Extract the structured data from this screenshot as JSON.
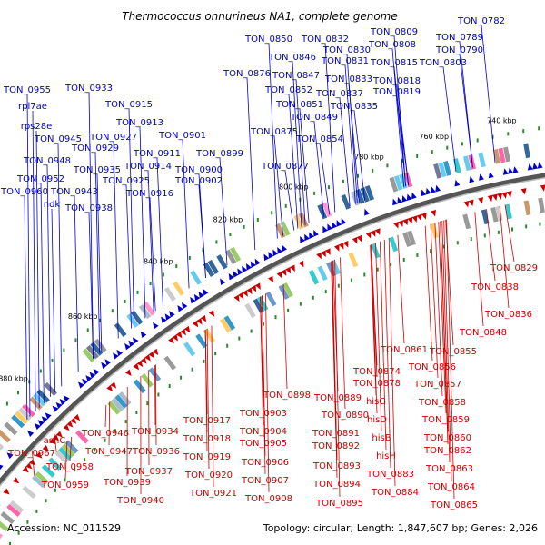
{
  "title": "Thermococcus onnurineus NA1, complete genome",
  "footer": {
    "accession": "Accession: NC_011529",
    "summary": "Topology: circular; Length: 1,847,607 bp; Genes: 2,026"
  },
  "colors": {
    "forward": "#0000cc",
    "reverse": "#cc0000",
    "backbone": "#555555",
    "tick": "#2a8a2a"
  },
  "ticks": [
    "740 kbp",
    "760 kbp",
    "780 kbp",
    "800 kbp",
    "820 kbp",
    "840 kbp",
    "860 kbp",
    "880 kbp"
  ],
  "top_labels": [
    "TON_0782",
    "TON_0809",
    "TON_0789",
    "TON_0808",
    "TON_0790",
    "TON_0850",
    "TON_0832",
    "TON_0830",
    "TON_0846",
    "TON_0831",
    "TON_0815",
    "TON_0803",
    "TON_0876",
    "TON_0847",
    "TON_0833",
    "TON_0818",
    "TON_0852",
    "TON_0837",
    "TON_0819",
    "TON_0851",
    "TON_0835",
    "TON_0849",
    "TON_0875",
    "TON_0854",
    "TON_0877",
    "TON_0955",
    "TON_0933",
    "rpl7ae",
    "TON_0915",
    "rps28e",
    "TON_0913",
    "TON_0945",
    "TON_0927",
    "TON_0901",
    "TON_0929",
    "TON_0911",
    "TON_0899",
    "TON_0948",
    "TON_0914",
    "TON_0935",
    "TON_0900",
    "TON_0952",
    "TON_0925",
    "TON_0902",
    "TON_0960",
    "TON_0943",
    "TON_0916",
    "ndk",
    "TON_0938"
  ],
  "bottom_labels": [
    "TON_0829",
    "TON_0838",
    "TON_0836",
    "TON_0848",
    "TON_0861",
    "TON_0855",
    "TON_0856",
    "TON_0874",
    "TON_0878",
    "TON_0857",
    "TON_0898",
    "TON_0889",
    "hisG",
    "TON_0858",
    "TON_0903",
    "TON_0890",
    "hisD",
    "TON_0859",
    "TON_0917",
    "TON_0904",
    "TON_0891",
    "hisB",
    "TON_0860",
    "TON_0946",
    "TON_0934",
    "TON_0918",
    "TON_0905",
    "TON_0892",
    "hisH",
    "TON_0862",
    "asnC",
    "TON_0947",
    "TON_0936",
    "TON_0919",
    "TON_0906",
    "TON_0893",
    "TON_0883",
    "TON_0863",
    "TON_0967",
    "TON_0958",
    "TON_0937",
    "TON_0920",
    "TON_0907",
    "TON_0894",
    "TON_0884",
    "TON_0864",
    "TON_0959",
    "TON_0939",
    "TON_0921",
    "TON_0908",
    "TON_0895",
    "TON_0865",
    "TON_0940"
  ]
}
